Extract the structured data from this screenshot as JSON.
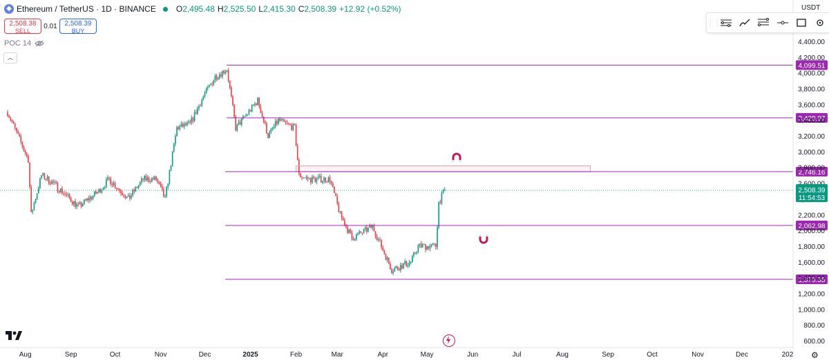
{
  "legend": {
    "symbol": "Ethereum / TetherUS · 1D · BINANCE",
    "open_label": "O",
    "open": "2,495.48",
    "high_label": "H",
    "high": "2,525.50",
    "low_label": "L",
    "low": "2,415.30",
    "close_label": "C",
    "close": "2,508.39",
    "change": "+12.92 (+0.52%)"
  },
  "trade": {
    "sell_price": "2,508.38",
    "sell_label": "SELL",
    "spread": "0.01",
    "buy_price": "2,508.39",
    "buy_label": "BUY"
  },
  "indicator": {
    "name": "POC 14"
  },
  "currency": "USDT",
  "colors": {
    "up": "#089981",
    "down": "#f23645",
    "level": "#9c27b0",
    "level_label_bg": "#9c27b0",
    "last_price_bg": "#089981"
  },
  "icons": [
    "ethereum-logo",
    "market-open-dot",
    "eye-off-icon",
    "collapse-chevron-icon",
    "drawing-toolbar-grip-icon",
    "pitchfork-tool-icon",
    "brush-tool-icon",
    "fib-tool-icon",
    "horizontal-line-icon",
    "rectangle-tool-icon",
    "settings-icon",
    "tradingview-logo",
    "magnet-icon",
    "replay-bolt-icon",
    "gear-icon"
  ],
  "chart_data": {
    "type": "candlestick",
    "y_ticks": [
      "4,400.00",
      "4,200.00",
      "4,000.00",
      "3,800.00",
      "3,600.00",
      "3,400.00",
      "3,200.00",
      "3,000.00",
      "2,800.00",
      "2,600.00",
      "2,400.00",
      "2,200.00",
      "2,000.00",
      "1,800.00",
      "1,600.00",
      "1,400.00",
      "1,200.00",
      "1,000.00",
      "800.00",
      "600.00"
    ],
    "x_ticks": [
      "Aug",
      "Sep",
      "Oct",
      "Nov",
      "Dec",
      "2025",
      "Feb",
      "Mar",
      "Apr",
      "May",
      "Jun",
      "Jul",
      "Aug",
      "Sep",
      "Oct",
      "Nov",
      "Dec",
      "202"
    ],
    "last_price": "2,508.39",
    "countdown": "11:54:53",
    "levels": [
      {
        "value": 4099.51,
        "label": "4,099.51"
      },
      {
        "value": 3428.97,
        "label": "3,428.97"
      },
      {
        "value": 2746.16,
        "label": "2,746.16"
      },
      {
        "value": 2062.98,
        "label": "2,062.98"
      },
      {
        "value": 1379.35,
        "label": "1,379.35"
      }
    ],
    "zone": {
      "from": 2746.16,
      "to": 2820,
      "start": "2025-02-01",
      "end": "2025-08-20"
    },
    "series_shape": [
      [
        "2024-07-20",
        3500
      ],
      [
        "2024-08-03",
        2900
      ],
      [
        "2024-08-05",
        2200
      ],
      [
        "2024-08-12",
        2700
      ],
      [
        "2024-08-20",
        2600
      ],
      [
        "2024-09-06",
        2300
      ],
      [
        "2024-09-20",
        2500
      ],
      [
        "2024-09-27",
        2650
      ],
      [
        "2024-10-10",
        2400
      ],
      [
        "2024-10-20",
        2650
      ],
      [
        "2024-10-29",
        2650
      ],
      [
        "2024-11-04",
        2400
      ],
      [
        "2024-11-12",
        3300
      ],
      [
        "2024-11-21",
        3350
      ],
      [
        "2024-11-30",
        3700
      ],
      [
        "2024-12-08",
        3950
      ],
      [
        "2024-12-16",
        4050
      ],
      [
        "2024-12-22",
        3300
      ],
      [
        "2025-01-06",
        3650
      ],
      [
        "2025-01-13",
        3200
      ],
      [
        "2025-01-20",
        3400
      ],
      [
        "2025-01-31",
        3300
      ],
      [
        "2025-02-03",
        2700
      ],
      [
        "2025-02-10",
        2650
      ],
      [
        "2025-02-24",
        2650
      ],
      [
        "2025-03-03",
        2200
      ],
      [
        "2025-03-11",
        1900
      ],
      [
        "2025-03-25",
        2050
      ],
      [
        "2025-04-07",
        1500
      ],
      [
        "2025-04-20",
        1600
      ],
      [
        "2025-04-25",
        1800
      ],
      [
        "2025-05-07",
        1800
      ],
      [
        "2025-05-09",
        2350
      ],
      [
        "2025-05-13",
        2508
      ]
    ]
  }
}
